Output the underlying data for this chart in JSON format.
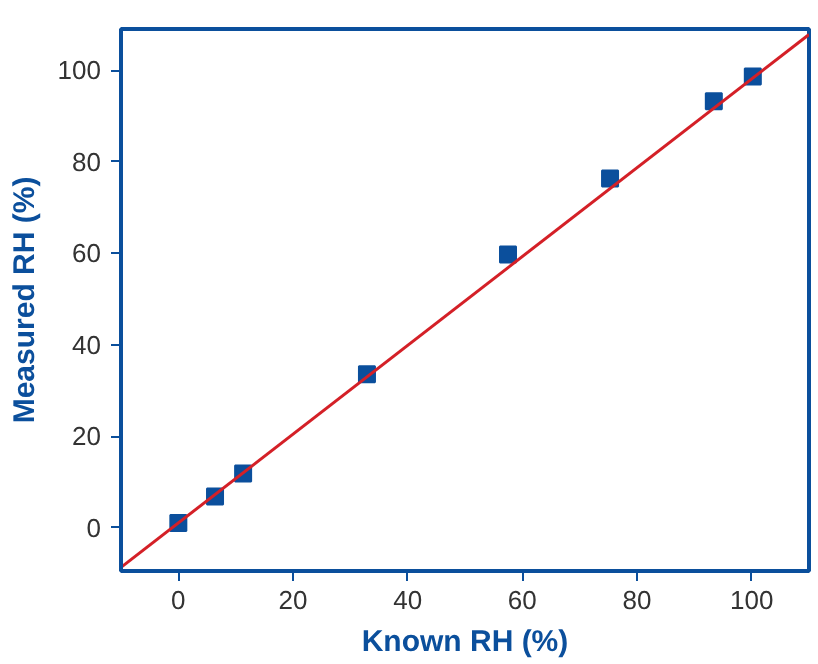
{
  "chart_data": {
    "type": "scatter",
    "xlabel": "Known RH (%)",
    "ylabel": "Measured RH (%)",
    "xlim": [
      -10,
      110
    ],
    "ylim": [
      -9.5,
      109
    ],
    "xticks": [
      0,
      20,
      40,
      60,
      80,
      100
    ],
    "yticks": [
      0,
      20,
      40,
      60,
      80,
      100
    ],
    "grid": false,
    "series": [
      {
        "marker": "square",
        "color": "#0b4f9c",
        "x": [
          0,
          6.4,
          11.3,
          32.9,
          57.5,
          75.3,
          93.4,
          100.2
        ],
        "values": [
          1,
          6.8,
          11.8,
          33.5,
          59.7,
          76.3,
          93.2,
          98.6
        ]
      },
      {
        "type": "line",
        "color": "#d42027",
        "x": [
          -10,
          110
        ],
        "values": [
          -8.7,
          107.8
        ],
        "line_style": "solid",
        "marker": "none"
      }
    ]
  }
}
